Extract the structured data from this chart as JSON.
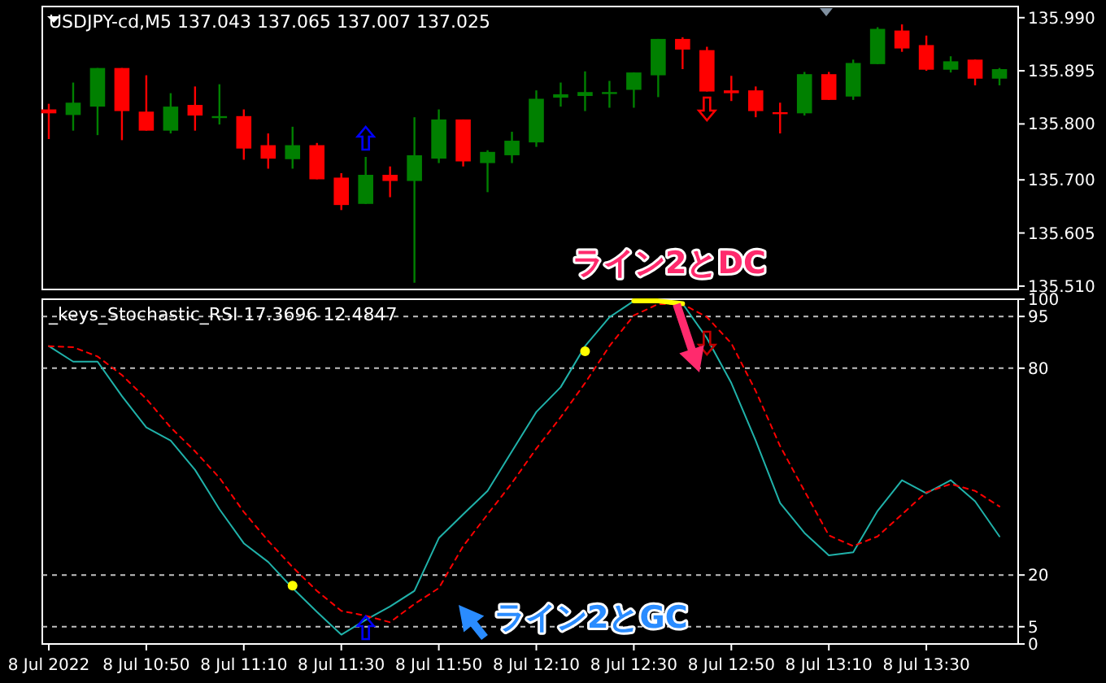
{
  "chart_data": [
    {
      "type": "candlestick",
      "title": "USDJPY-cd,M5  137.043 137.065 137.007 137.025",
      "categories": [
        null,
        null,
        null,
        null,
        null,
        null,
        null,
        null,
        null,
        null,
        null,
        null,
        null,
        null,
        null,
        null,
        null,
        null,
        null,
        null,
        null,
        null,
        null,
        null,
        null,
        null,
        null,
        null,
        null,
        null,
        null,
        null,
        null,
        null,
        null,
        null,
        null,
        null,
        null,
        null
      ],
      "ohlc": [
        [
          135.826,
          135.836,
          135.773,
          135.819
        ],
        [
          135.816,
          135.874,
          135.788,
          135.838
        ],
        [
          135.831,
          135.9,
          135.78,
          135.9
        ],
        [
          135.9,
          135.9,
          135.771,
          135.823
        ],
        [
          135.822,
          135.887,
          135.788,
          135.788
        ],
        [
          135.788,
          135.855,
          135.783,
          135.831
        ],
        [
          135.834,
          135.867,
          135.788,
          135.815
        ],
        [
          135.813,
          135.871,
          135.799,
          135.814
        ],
        [
          135.814,
          135.826,
          135.736,
          135.756
        ],
        [
          135.762,
          135.783,
          135.72,
          135.738
        ],
        [
          135.737,
          135.795,
          135.72,
          135.762
        ],
        [
          135.762,
          135.766,
          135.701,
          135.701
        ],
        [
          135.704,
          135.712,
          135.646,
          135.655
        ],
        [
          135.657,
          135.741,
          135.657,
          135.709
        ],
        [
          135.709,
          135.724,
          135.669,
          135.698
        ],
        [
          135.698,
          135.812,
          135.516,
          135.744
        ],
        [
          135.738,
          135.826,
          135.73,
          135.808
        ],
        [
          135.808,
          135.808,
          135.724,
          135.733
        ],
        [
          135.73,
          135.753,
          135.678,
          135.75
        ],
        [
          135.744,
          135.786,
          135.73,
          135.77
        ],
        [
          135.767,
          135.86,
          135.759,
          135.845
        ],
        [
          135.847,
          135.874,
          135.831,
          135.853
        ],
        [
          135.85,
          135.894,
          135.823,
          135.857
        ],
        [
          135.855,
          135.877,
          135.829,
          135.857
        ],
        [
          135.861,
          135.892,
          135.829,
          135.892
        ],
        [
          135.887,
          135.952,
          135.848,
          135.952
        ],
        [
          135.952,
          135.955,
          135.898,
          135.933
        ],
        [
          135.932,
          135.938,
          135.858,
          135.858
        ],
        [
          135.86,
          135.886,
          135.841,
          135.855
        ],
        [
          135.86,
          135.867,
          135.812,
          135.823
        ],
        [
          135.821,
          135.838,
          135.783,
          135.819
        ],
        [
          135.819,
          135.893,
          135.815,
          135.889
        ],
        [
          135.889,
          135.893,
          135.843,
          135.843
        ],
        [
          135.849,
          135.915,
          135.843,
          135.909
        ],
        [
          135.907,
          135.973,
          135.907,
          135.97
        ],
        [
          135.967,
          135.978,
          135.929,
          135.935
        ],
        [
          135.941,
          135.958,
          135.895,
          135.897
        ],
        [
          135.897,
          135.921,
          135.892,
          135.912
        ],
        [
          135.915,
          135.915,
          135.869,
          135.881
        ],
        [
          135.881,
          135.9,
          135.869,
          135.898
        ]
      ],
      "colors": [
        "#ff0000",
        "#008000",
        "#008000",
        "#ff0000",
        "#ff0000",
        "#008000",
        "#ff0000",
        "#008000",
        "#ff0000",
        "#ff0000",
        "#008000",
        "#ff0000",
        "#ff0000",
        "#008000",
        "#ff0000",
        "#008000",
        "#008000",
        "#ff0000",
        "#008000",
        "#008000",
        "#008000",
        "#008000",
        "#008000",
        "#008000",
        "#008000",
        "#008000",
        "#ff0000",
        "#ff0000",
        "#ff0000",
        "#ff0000",
        "#ff0000",
        "#008000",
        "#ff0000",
        "#008000",
        "#008000",
        "#ff0000",
        "#ff0000",
        "#008000",
        "#ff0000",
        "#008000"
      ],
      "ylim": [
        135.504,
        136.01
      ],
      "yticks": [
        {
          "value": 135.51,
          "label": "135.510"
        },
        135.605,
        {
          "value": 135.7,
          "label": "135.700"
        },
        {
          "value": 135.8,
          "label": "135.800"
        },
        135.895,
        {
          "value": 135.99,
          "label": "135.990"
        }
      ],
      "tick_labels": "y",
      "annotations": [
        "ライン2とDC"
      ]
    },
    {
      "type": "line",
      "title": "_keys_Stochastic_RSI 17.3696 12.4847",
      "categories": [
        "8 Jul 2022",
        null,
        null,
        null,
        "8 Jul 10:50",
        null,
        null,
        null,
        "8 Jul 11:10",
        null,
        null,
        null,
        "8 Jul 11:30",
        null,
        null,
        null,
        "8 Jul 11:50",
        null,
        null,
        null,
        "8 Jul 12:10",
        null,
        null,
        null,
        "8 Jul 12:30",
        null,
        null,
        null,
        "8 Jul 12:50",
        null,
        null,
        null,
        "8 Jul 13:10",
        null,
        null,
        null,
        "8 Jul 13:30",
        null,
        null,
        null
      ],
      "series": [
        {
          "color": "#20b2aa",
          "line_style": "solid",
          "values": [
            86.4,
            81.9,
            81.9,
            71.9,
            62.8,
            59.0,
            50.5,
            39.1,
            29.2,
            23.8,
            16.2,
            9.3,
            2.7,
            7.0,
            10.9,
            15.4,
            30.7,
            37.6,
            44.4,
            55.9,
            67.3,
            74.5,
            86.4,
            94.8,
            99.5,
            99.5,
            98.7,
            88.7,
            75.7,
            59.0,
            40.9,
            32.2,
            25.7,
            26.6,
            38.6,
            47.5,
            43.7,
            47.5,
            41.4,
            31.2
          ]
        },
        {
          "color": "#ff0000",
          "line_style": "dashed",
          "values": [
            86.4,
            86.1,
            83.4,
            78.0,
            71.1,
            62.8,
            55.9,
            48.2,
            38.3,
            29.9,
            22.3,
            15.4,
            9.6,
            8.2,
            6.3,
            11.6,
            16.2,
            28.4,
            37.6,
            46.7,
            56.7,
            65.8,
            75.7,
            86.4,
            95.3,
            98.6,
            98.6,
            94.8,
            87.2,
            73.4,
            57.4,
            44.4,
            31.5,
            28.4,
            31.2,
            37.6,
            44.0,
            46.4,
            44.4,
            39.9
          ]
        },
        {
          "color": "#ffff00",
          "line_style": "solid",
          "values": [
            null,
            null,
            null,
            null,
            null,
            null,
            null,
            null,
            null,
            null,
            null,
            null,
            null,
            null,
            null,
            null,
            null,
            null,
            null,
            null,
            null,
            null,
            null,
            null,
            99.5,
            99.5,
            98.7,
            null,
            null,
            null,
            null,
            null,
            null,
            null,
            null,
            null,
            null,
            null,
            null,
            null
          ]
        },
        {
          "type": "scatter",
          "color": "#ffff00",
          "values": [
            null,
            null,
            null,
            null,
            null,
            null,
            null,
            null,
            null,
            null,
            16.9,
            null,
            null,
            null,
            null,
            null,
            null,
            null,
            null,
            null,
            null,
            null,
            84.9,
            null,
            null,
            null,
            null,
            null,
            null,
            null,
            null,
            null,
            null,
            null,
            null,
            null,
            null,
            null,
            null,
            null
          ]
        }
      ],
      "ylim": [
        0,
        100
      ],
      "yticks": [
        0,
        5,
        20,
        80,
        95,
        100
      ],
      "ref_lines": [
        {
          "axis": "y",
          "value": 95,
          "color": "#c0c0c0",
          "line_style": "dashed"
        },
        {
          "axis": "y",
          "value": 80,
          "color": "#c0c0c0",
          "line_style": "dashed"
        },
        {
          "axis": "y",
          "value": 20,
          "color": "#c0c0c0",
          "line_style": "dashed"
        },
        {
          "axis": "y",
          "value": 5,
          "color": "#c0c0c0",
          "line_style": "dashed"
        }
      ],
      "annotations": [
        "ライン2とGC"
      ]
    }
  ]
}
